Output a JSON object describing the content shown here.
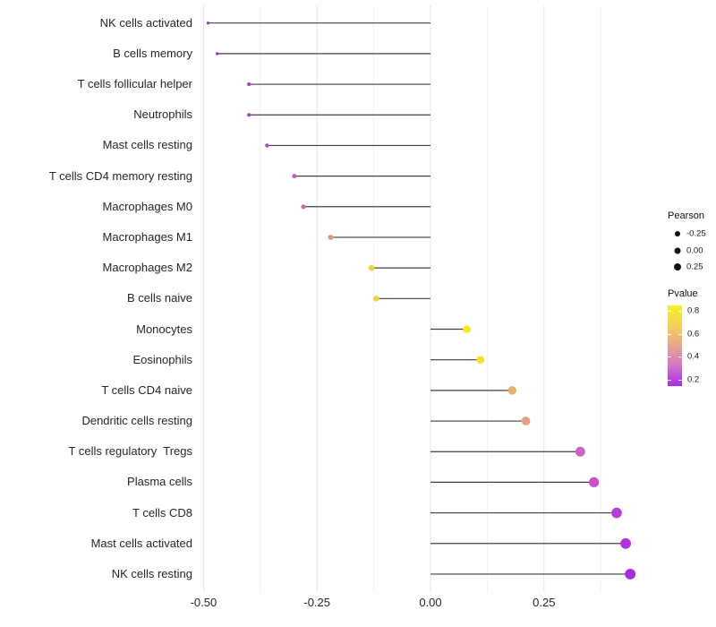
{
  "chart_data": {
    "type": "lollipop",
    "orientation": "horizontal",
    "title": "",
    "xlabel": "",
    "ylabel": "",
    "x_tick_labels": [
      "-0.50",
      "-0.25",
      "0.00",
      "0.25"
    ],
    "x_tick_values": [
      -0.5,
      -0.25,
      0.0,
      0.25
    ],
    "x_minor_tick_values": [
      -0.375,
      -0.125,
      0.125,
      0.375
    ],
    "xlim": [
      -0.545,
      0.49
    ],
    "grid": "vertical-major-and-minor",
    "baseline_x": 0.0,
    "stick_color": "#404040",
    "major_grid_color": "#e6e6e6",
    "minor_grid_color": "#f2f2f2",
    "background_color": "#ffffff",
    "points": [
      {
        "label": "NK cells activated",
        "pearson": -0.49,
        "pvalue": 0.22,
        "color": "#9331e1"
      },
      {
        "label": "B cells memory",
        "pearson": -0.47,
        "pvalue": 0.25,
        "color": "#9b2fdb"
      },
      {
        "label": "T cells follicular helper",
        "pearson": -0.4,
        "pvalue": 0.3,
        "color": "#a43bd3"
      },
      {
        "label": "Neutrophils",
        "pearson": -0.4,
        "pvalue": 0.3,
        "color": "#a43bd3"
      },
      {
        "label": "Mast cells resting",
        "pearson": -0.36,
        "pvalue": 0.35,
        "color": "#b14ac6"
      },
      {
        "label": "T cells CD4 memory resting",
        "pearson": -0.3,
        "pvalue": 0.4,
        "color": "#c35db8"
      },
      {
        "label": "Macrophages M0",
        "pearson": -0.28,
        "pvalue": 0.45,
        "color": "#cb68ad"
      },
      {
        "label": "Macrophages M1",
        "pearson": -0.22,
        "pvalue": 0.58,
        "color": "#e29180"
      },
      {
        "label": "Macrophages M2",
        "pearson": -0.13,
        "pvalue": 0.72,
        "color": "#f2d53e"
      },
      {
        "label": "B cells naive",
        "pearson": -0.12,
        "pvalue": 0.72,
        "color": "#f2d53e"
      },
      {
        "label": "Monocytes",
        "pearson": 0.08,
        "pvalue": 0.8,
        "color": "#f8eb10"
      },
      {
        "label": "Eosinophils",
        "pearson": 0.11,
        "pvalue": 0.78,
        "color": "#f6e428"
      },
      {
        "label": "T cells CD4 naive",
        "pearson": 0.18,
        "pvalue": 0.65,
        "color": "#ebb06f"
      },
      {
        "label": "Dendritic cells resting",
        "pearson": 0.21,
        "pvalue": 0.6,
        "color": "#e7a084"
      },
      {
        "label": "T cells regulatory  Tregs",
        "pearson": 0.33,
        "pvalue": 0.42,
        "color": "#cc62c4"
      },
      {
        "label": "Plasma cells",
        "pearson": 0.36,
        "pvalue": 0.38,
        "color": "#c94fcb"
      },
      {
        "label": "T cells CD8",
        "pearson": 0.41,
        "pvalue": 0.32,
        "color": "#b83dd8"
      },
      {
        "label": "Mast cells activated",
        "pearson": 0.43,
        "pvalue": 0.28,
        "color": "#b134de"
      },
      {
        "label": "NK cells resting",
        "pearson": 0.44,
        "pvalue": 0.24,
        "color": "#aa2be3"
      }
    ],
    "legend": {
      "size_legend": {
        "title": "Pearson",
        "items": [
          {
            "label": "-0.25",
            "value": -0.25
          },
          {
            "label": "0.00",
            "value": 0.0
          },
          {
            "label": "0.25",
            "value": 0.25
          }
        ],
        "dot_color": "#111111"
      },
      "color_legend": {
        "title": "Pvalue",
        "ticks": [
          {
            "label": "0.8",
            "value": 0.8
          },
          {
            "label": "0.6",
            "value": 0.6
          },
          {
            "label": "0.4",
            "value": 0.4
          },
          {
            "label": "0.2",
            "value": 0.2
          }
        ],
        "gradient_top_to_bottom": [
          "#f9f121",
          "#f3ce5d",
          "#e9a58c",
          "#d177c6",
          "#aa2be8"
        ]
      }
    }
  }
}
